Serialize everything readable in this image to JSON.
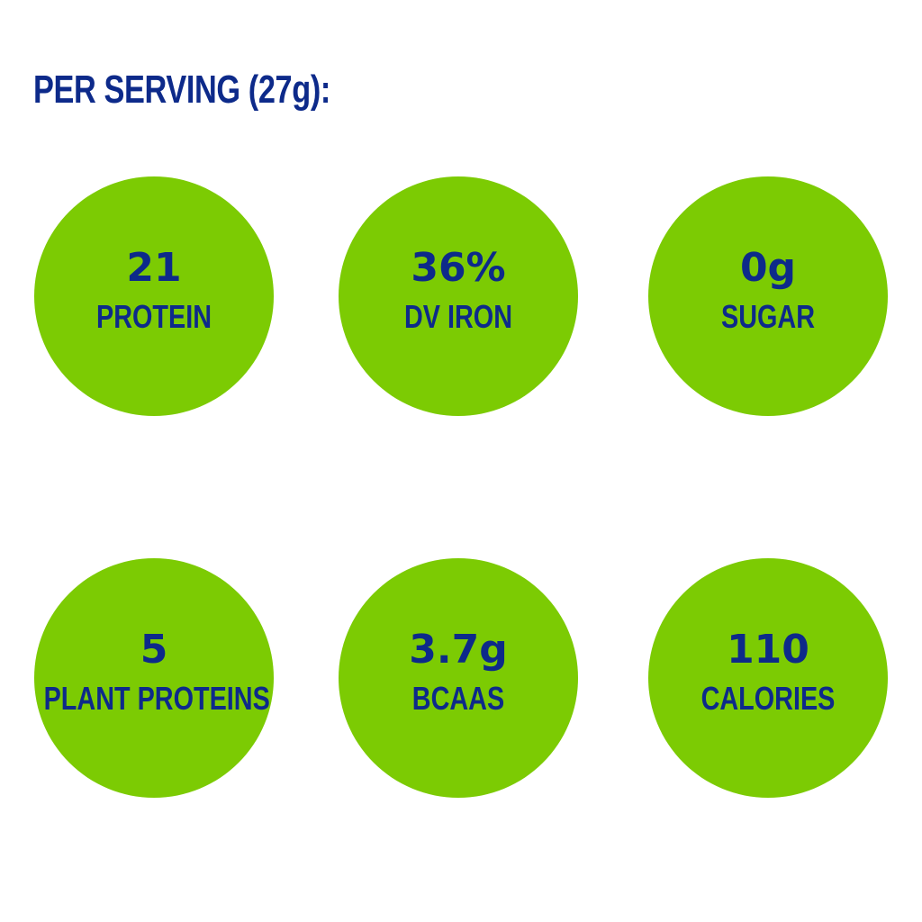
{
  "heading": "PER SERVING (27g):",
  "stats": [
    {
      "value": "21",
      "label": "PROTEIN"
    },
    {
      "value": "36%",
      "label": "DV IRON"
    },
    {
      "value": "0g",
      "label": "SUGAR"
    },
    {
      "value": "5",
      "label": "PLANT PROTEINS"
    },
    {
      "value": "3.7g",
      "label": "BCAAS"
    },
    {
      "value": "110",
      "label": "CALORIES"
    }
  ],
  "colors": {
    "accent_green": "#7ccb03",
    "text_navy": "#0d2a8a",
    "background": "#ffffff"
  }
}
